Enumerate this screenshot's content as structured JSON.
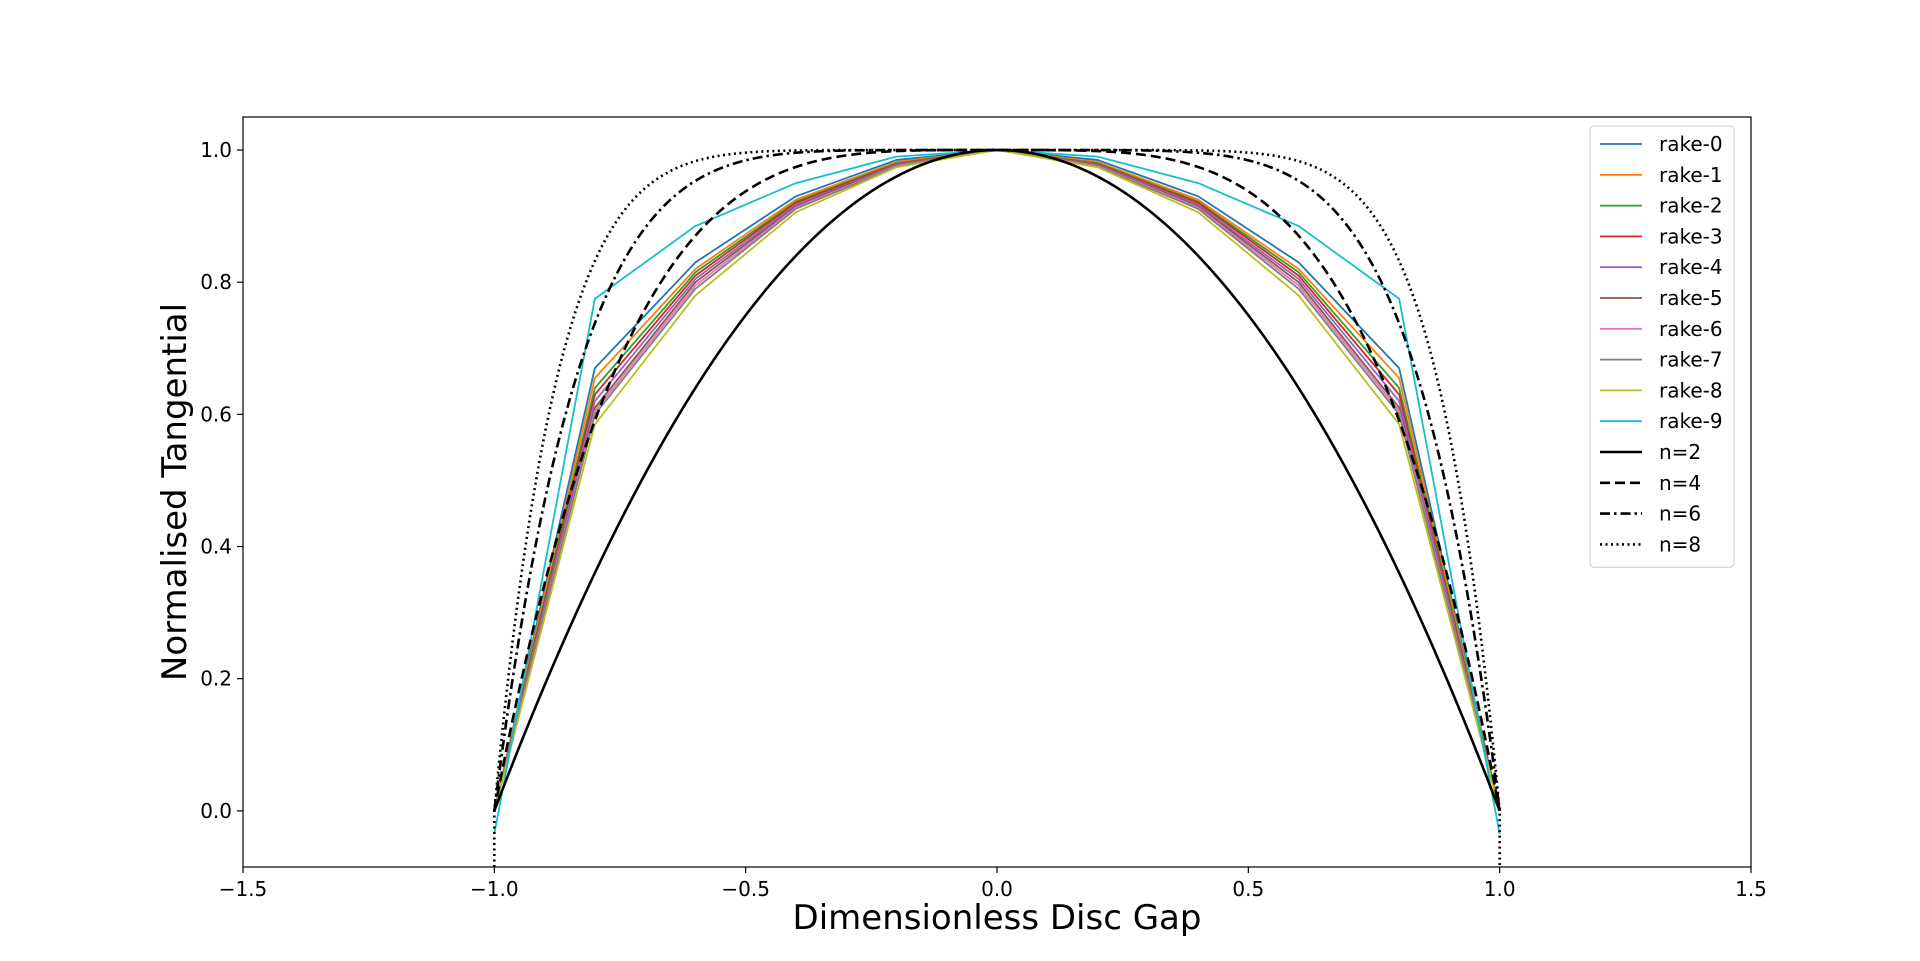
{
  "chart_data": {
    "type": "line",
    "title": "",
    "xlabel": "Dimensionless Disc Gap",
    "ylabel": "Normalised Tangential",
    "xlim": [
      -1.5,
      1.5
    ],
    "ylim": [
      -0.085,
      1.05
    ],
    "xticks": [
      -1.5,
      -1.0,
      -0.5,
      0.0,
      0.5,
      1.0,
      1.5
    ],
    "xtick_labels": [
      "−1.5",
      "−1.0",
      "−0.5",
      "0.0",
      "0.5",
      "1.0",
      "1.5"
    ],
    "yticks": [
      0.0,
      0.2,
      0.4,
      0.6,
      0.8,
      1.0
    ],
    "ytick_labels": [
      "0.0",
      "0.2",
      "0.4",
      "0.6",
      "0.8",
      "1.0"
    ],
    "grid": false,
    "legend_position": "top-right",
    "x": [
      -1.0,
      -0.8,
      -0.6,
      -0.4,
      -0.2,
      0.0,
      0.2,
      0.4,
      0.6,
      0.8,
      1.0
    ],
    "series": [
      {
        "name": "rake-0",
        "color": "#1f77b4",
        "style": "solid",
        "values": [
          0.0,
          0.67,
          0.83,
          0.93,
          0.985,
          1.0,
          0.985,
          0.93,
          0.83,
          0.67,
          0.0
        ]
      },
      {
        "name": "rake-1",
        "color": "#ff7f0e",
        "style": "solid",
        "values": [
          0.0,
          0.655,
          0.82,
          0.925,
          0.982,
          1.0,
          0.982,
          0.925,
          0.82,
          0.655,
          0.0
        ]
      },
      {
        "name": "rake-2",
        "color": "#2ca02c",
        "style": "solid",
        "values": [
          0.0,
          0.64,
          0.815,
          0.922,
          0.98,
          1.0,
          0.98,
          0.922,
          0.815,
          0.64,
          0.0
        ]
      },
      {
        "name": "rake-3",
        "color": "#d62728",
        "style": "solid",
        "values": [
          0.0,
          0.63,
          0.81,
          0.92,
          0.979,
          1.0,
          0.979,
          0.92,
          0.81,
          0.63,
          0.0
        ]
      },
      {
        "name": "rake-4",
        "color": "#9467bd",
        "style": "solid",
        "values": [
          0.0,
          0.62,
          0.805,
          0.917,
          0.978,
          1.0,
          0.978,
          0.917,
          0.805,
          0.62,
          0.0
        ]
      },
      {
        "name": "rake-5",
        "color": "#8c564b",
        "style": "solid",
        "values": [
          0.0,
          0.61,
          0.8,
          0.915,
          0.977,
          1.0,
          0.977,
          0.915,
          0.8,
          0.61,
          0.0
        ]
      },
      {
        "name": "rake-6",
        "color": "#e377c2",
        "style": "solid",
        "values": [
          0.0,
          0.605,
          0.795,
          0.913,
          0.976,
          1.0,
          0.976,
          0.913,
          0.795,
          0.605,
          0.0
        ]
      },
      {
        "name": "rake-7",
        "color": "#7f7f7f",
        "style": "solid",
        "values": [
          0.0,
          0.6,
          0.79,
          0.911,
          0.975,
          1.0,
          0.975,
          0.911,
          0.79,
          0.6,
          0.0
        ]
      },
      {
        "name": "rake-8",
        "color": "#bcbd22",
        "style": "solid",
        "values": [
          0.0,
          0.585,
          0.78,
          0.906,
          0.974,
          1.0,
          0.974,
          0.906,
          0.78,
          0.585,
          0.0
        ]
      },
      {
        "name": "rake-9",
        "color": "#17becf",
        "style": "solid",
        "values": [
          -0.035,
          0.775,
          0.885,
          0.95,
          0.99,
          1.0,
          0.99,
          0.95,
          0.885,
          0.775,
          -0.035
        ]
      },
      {
        "name": "n=2",
        "color": "#000000",
        "style": "solid",
        "exponent": 2
      },
      {
        "name": "n=4",
        "color": "#000000",
        "style": "dashed",
        "exponent": 4
      },
      {
        "name": "n=6",
        "color": "#000000",
        "style": "dashdot",
        "exponent": 6
      },
      {
        "name": "n=8",
        "color": "#000000",
        "style": "dotted",
        "exponent": 8,
        "drop_at_edges": -0.085
      }
    ]
  }
}
